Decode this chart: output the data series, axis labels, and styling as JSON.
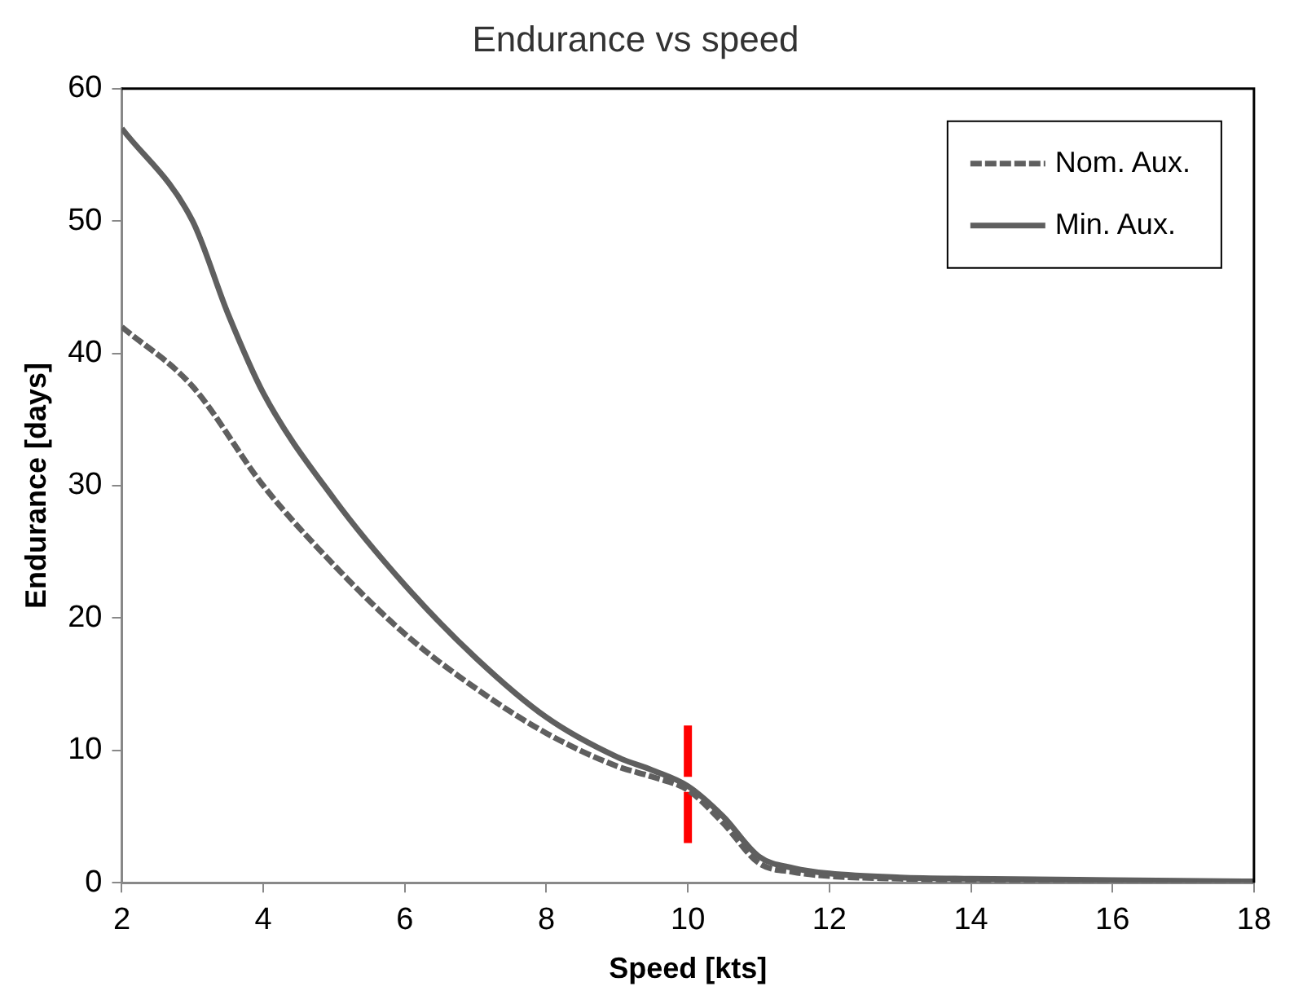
{
  "chart_data": {
    "type": "line",
    "title": "Endurance vs speed",
    "xlabel": "Speed [kts]",
    "ylabel": "Endurance [days]",
    "xlim": [
      2,
      18
    ],
    "xticks": [
      2,
      4,
      6,
      8,
      10,
      12,
      14,
      16,
      18
    ],
    "ylim": [
      0,
      60
    ],
    "yticks": [
      0,
      10,
      20,
      30,
      40,
      50,
      60
    ],
    "grid": false,
    "legend": "top right",
    "marker": "none",
    "series": [
      {
        "name": "Nom. Aux.",
        "color": "#5f5f5f",
        "line_style": "dashed",
        "x": [
          2,
          3,
          4,
          5,
          6,
          7,
          8,
          9,
          9.5,
          10,
          10.5,
          11,
          11.5,
          12,
          13,
          14,
          16,
          18
        ],
        "values": [
          42,
          37.5,
          30,
          24,
          18.8,
          14.7,
          11.3,
          8.8,
          8,
          7,
          4.5,
          1.5,
          0.8,
          0.5,
          0.3,
          0.2,
          0.1,
          0.1
        ]
      },
      {
        "name": "Min. Aux.",
        "color": "#5f5f5f",
        "line_style": "solid",
        "x": [
          2,
          3,
          3.5,
          4,
          5,
          6,
          7,
          8,
          9,
          9.5,
          10,
          10.5,
          11,
          11.5,
          12,
          13,
          14,
          16,
          18
        ],
        "values": [
          57,
          50,
          43,
          37,
          29,
          22.5,
          17,
          12.5,
          9.5,
          8.5,
          7.3,
          5,
          2,
          1.1,
          0.7,
          0.4,
          0.3,
          0.2,
          0.1
        ]
      },
      {
        "color": "#ff0000",
        "line_style": "dashed",
        "x": [
          10,
          10
        ],
        "values": [
          3,
          12
        ]
      }
    ]
  }
}
